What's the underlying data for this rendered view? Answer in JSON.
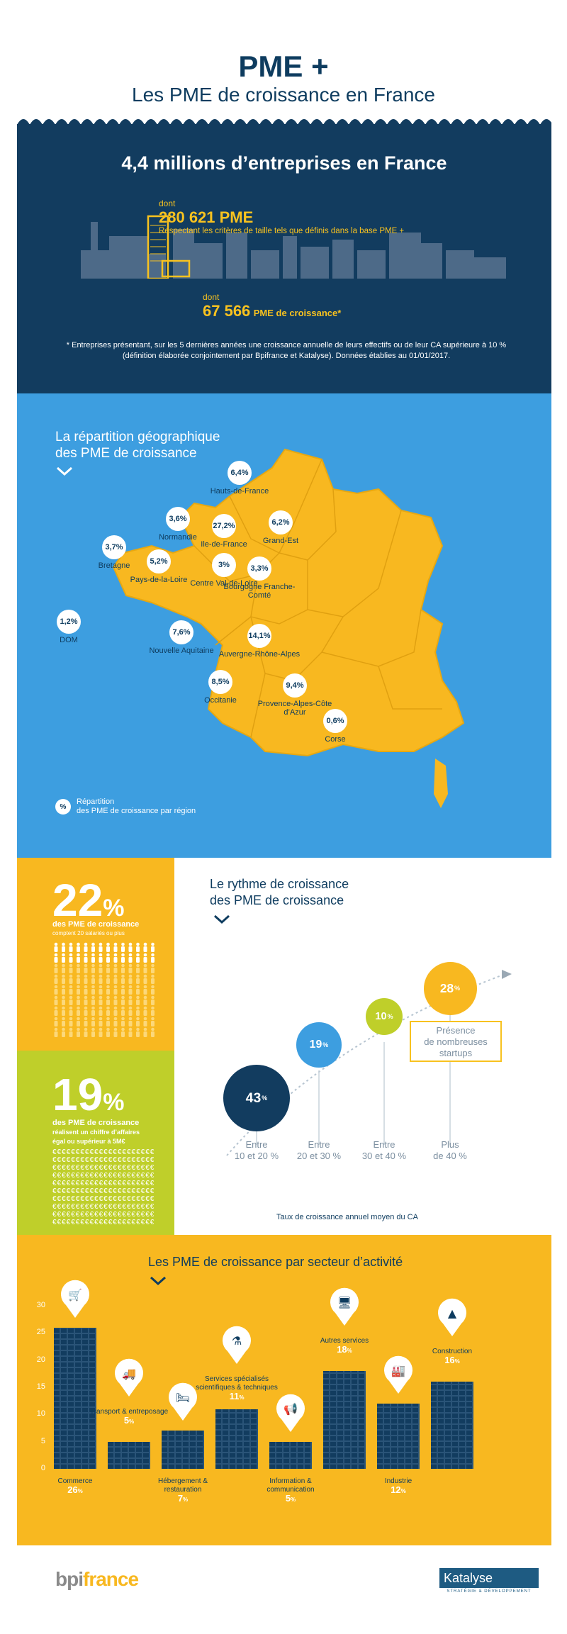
{
  "header": {
    "title": "PME +",
    "subtitle": "Les PME de croissance en France"
  },
  "overview": {
    "title": "4,4 millions d’entreprises en France",
    "dont1": "dont",
    "pme_count": "280 621 PME",
    "pme_desc": "Respectant les critères de taille tels que définis dans la base PME +",
    "dont2": "dont",
    "growth_count": "67 566",
    "growth_label": "PME de croissance*",
    "note": "* Entreprises présentant, sur les 5 dernières années une croissance annuelle de leurs effectifs ou de leur CA supérieure à 10 % (définition élaborée conjointement par Bpifrance et Katalyse). Données établies au 01/01/2017."
  },
  "geo": {
    "title_line1": "La répartition géographique",
    "title_line2": "des PME de croissance",
    "legend_symbol": "%",
    "legend_line1": "Répartition",
    "legend_line2": "des PME de croissance par région",
    "regions": [
      {
        "name": "Hauts-de-France",
        "value": "6,4%"
      },
      {
        "name": "Normandie",
        "value": "3,6%"
      },
      {
        "name": "Ile-de-France",
        "value": "27,2%"
      },
      {
        "name": "Grand-Est",
        "value": "6,2%"
      },
      {
        "name": "Bretagne",
        "value": "3,7%"
      },
      {
        "name": "Pays-de-la-Loire",
        "value": "5,2%"
      },
      {
        "name": "Centre Val-de-Loire",
        "value": "3%"
      },
      {
        "name": "Bourgogne Franche-Comté",
        "value": "3,3%"
      },
      {
        "name": "DOM",
        "value": "1,2%"
      },
      {
        "name": "Nouvelle Aquitaine",
        "value": "7,6%"
      },
      {
        "name": "Auvergne-Rhône-Alpes",
        "value": "14,1%"
      },
      {
        "name": "Provence-Alpes-Côte d’Azur",
        "value": "9,4%"
      },
      {
        "name": "Occitanie",
        "value": "8,5%"
      },
      {
        "name": "Corse",
        "value": "0,6%"
      }
    ]
  },
  "stats": {
    "s1_number": "22",
    "s1_percent": "%",
    "s1_line1": "des PME de croissance",
    "s1_line2": "comptent 20 salariés ou plus",
    "s2_number": "19",
    "s2_percent": "%",
    "s2_line1": "des PME de croissance",
    "s2_line2": "réalisent un chiffre d’affaires",
    "s2_line3": "égal ou supérieur à 5M€"
  },
  "growth": {
    "title_line1": "Le rythme de croissance",
    "title_line2": "des PME de croissance",
    "buckets": [
      {
        "value": "43",
        "label_line1": "Entre",
        "label_line2": "10 et 20 %"
      },
      {
        "value": "19",
        "label_line1": "Entre",
        "label_line2": "20 et 30 %"
      },
      {
        "value": "10",
        "label_line1": "Entre",
        "label_line2": "30 et 40 %"
      },
      {
        "value": "28",
        "label_line1": "Plus",
        "label_line2": "de 40 %"
      }
    ],
    "pct": "%",
    "callout_line1": "Présence",
    "callout_line2": "de nombreuses",
    "callout_line3": "startups",
    "axis_label": "Taux de croissance annuel moyen du CA"
  },
  "chart_data": {
    "type": "bar",
    "title": "Les PME de croissance par secteur d’activité",
    "ylim": [
      0,
      30
    ],
    "yticks": [
      "0",
      "5",
      "10",
      "15",
      "20",
      "25",
      "30"
    ],
    "categories": [
      "Commerce",
      "Transport & entreposage",
      "Hébergement & restauration",
      "Services spécialisés scientifiques & techniques",
      "Information & communication",
      "Autres services",
      "Industrie",
      "Construction"
    ],
    "values": [
      26,
      5,
      7,
      11,
      5,
      18,
      12,
      16
    ],
    "value_labels": [
      "26",
      "5",
      "7",
      "11",
      "5",
      "18",
      "12",
      "16"
    ],
    "pct": "%"
  },
  "footer": {
    "bpi_a": "bpi",
    "bpi_b": "france",
    "katalyse": "Katalyse",
    "katalyse_sub": "STRATÉGIE & DÉVELOPPEMENT"
  },
  "colors": {
    "navy": "#123c5f",
    "yellow": "#f8b820",
    "blue": "#3d9ee0",
    "green": "#bfcf2a",
    "light_blue": "#3d9ee0"
  }
}
